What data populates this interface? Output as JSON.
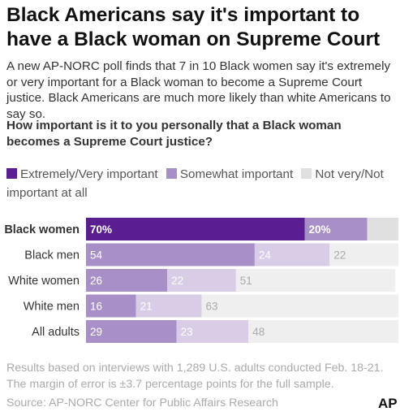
{
  "header": {
    "title": "Black Americans say it's important to have a Black woman on Supreme Court",
    "subtitle": "A new AP-NORC poll finds that 7 in 10 Black women say it's extremely or very important for a Black woman to become a Supreme Court justice. Black Americans are much more likely than white Americans to say so.",
    "question": "How important is it to you personally that a Black woman becomes a Supreme Court justice?"
  },
  "legend": [
    {
      "label": "Extremely/Very important",
      "color": "#5a1e91"
    },
    {
      "label": "Somewhat important",
      "color": "#a98fc7"
    },
    {
      "label": "Not very/Not important at all",
      "color": "#e0e0e0"
    }
  ],
  "chart_data": {
    "type": "bar",
    "orientation": "horizontal",
    "stacked": true,
    "categories": [
      "Black women",
      "Black men",
      "White women",
      "White men",
      "All adults"
    ],
    "series": [
      {
        "name": "Extremely/Very important",
        "values": [
          70,
          54,
          26,
          16,
          29
        ]
      },
      {
        "name": "Somewhat important",
        "values": [
          20,
          24,
          22,
          21,
          23
        ]
      },
      {
        "name": "Not very/Not important at all",
        "values": [
          null,
          22,
          51,
          63,
          48
        ]
      }
    ],
    "value_labels": [
      [
        "70%",
        "20%",
        ""
      ],
      [
        "54",
        "24",
        "22"
      ],
      [
        "26",
        "22",
        "51"
      ],
      [
        "16",
        "21",
        "63"
      ],
      [
        "29",
        "23",
        "48"
      ]
    ],
    "highlight_category": "Black women",
    "xlim": [
      0,
      100
    ],
    "colors": {
      "highlight": [
        "#5a1e91",
        "#a98fc7",
        "#e0e0e0"
      ],
      "normal": [
        "#a98fc7",
        "#d8cce6",
        "#efefef"
      ]
    }
  },
  "footer": {
    "note": "Results based on interviews with 1,289 U.S. adults conducted Feb. 18-21. The margin of error is ±3.7 percentage points for the full sample.",
    "source": "Source: AP-NORC Center for Public Affairs Research",
    "logo": "AP"
  }
}
